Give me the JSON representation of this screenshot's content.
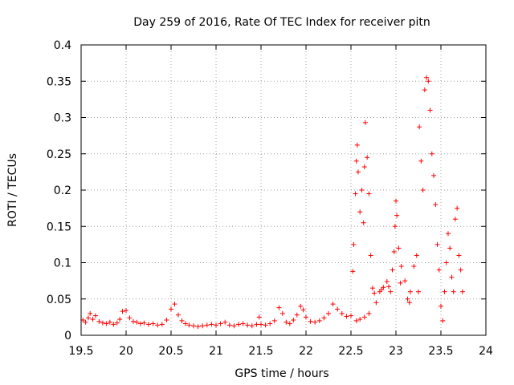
{
  "chart_data": {
    "type": "scatter",
    "title": "Day 259 of 2016, Rate Of TEC Index for receiver pitn",
    "xlabel": "GPS time / hours",
    "ylabel": "ROTI / TECUs",
    "xlim": [
      19.5,
      24
    ],
    "ylim": [
      0,
      0.4
    ],
    "xticks": [
      "19.5",
      "20",
      "20.5",
      "21",
      "21.5",
      "22",
      "22.5",
      "23",
      "23.5",
      "24"
    ],
    "yticks": [
      "0",
      "0.05",
      "0.1",
      "0.15",
      "0.2",
      "0.25",
      "0.3",
      "0.35",
      "0.4"
    ],
    "xtick_values": [
      19.5,
      20,
      20.5,
      21,
      21.5,
      22,
      22.5,
      23,
      23.5,
      24
    ],
    "ytick_values": [
      0,
      0.05,
      0.1,
      0.15,
      0.2,
      0.25,
      0.3,
      0.35,
      0.4
    ],
    "grid": true,
    "marker": "+",
    "color": "#ff0000",
    "series": [
      {
        "name": "ROTI",
        "points": [
          [
            19.52,
            0.021
          ],
          [
            19.55,
            0.018
          ],
          [
            19.58,
            0.024
          ],
          [
            19.6,
            0.03
          ],
          [
            19.63,
            0.022
          ],
          [
            19.66,
            0.027
          ],
          [
            19.7,
            0.019
          ],
          [
            19.74,
            0.017
          ],
          [
            19.78,
            0.016
          ],
          [
            19.82,
            0.018
          ],
          [
            19.86,
            0.015
          ],
          [
            19.9,
            0.017
          ],
          [
            19.93,
            0.022
          ],
          [
            19.96,
            0.033
          ],
          [
            20.0,
            0.034
          ],
          [
            20.04,
            0.024
          ],
          [
            20.08,
            0.019
          ],
          [
            20.12,
            0.018
          ],
          [
            20.16,
            0.016
          ],
          [
            20.2,
            0.017
          ],
          [
            20.25,
            0.015
          ],
          [
            20.3,
            0.016
          ],
          [
            20.35,
            0.014
          ],
          [
            20.4,
            0.015
          ],
          [
            20.45,
            0.021
          ],
          [
            20.5,
            0.036
          ],
          [
            20.54,
            0.043
          ],
          [
            20.58,
            0.028
          ],
          [
            20.62,
            0.02
          ],
          [
            20.66,
            0.016
          ],
          [
            20.7,
            0.014
          ],
          [
            20.75,
            0.013
          ],
          [
            20.8,
            0.012
          ],
          [
            20.85,
            0.013
          ],
          [
            20.9,
            0.014
          ],
          [
            20.95,
            0.015
          ],
          [
            21.0,
            0.014
          ],
          [
            21.05,
            0.016
          ],
          [
            21.1,
            0.018
          ],
          [
            21.15,
            0.014
          ],
          [
            21.2,
            0.013
          ],
          [
            21.25,
            0.015
          ],
          [
            21.3,
            0.016
          ],
          [
            21.35,
            0.014
          ],
          [
            21.4,
            0.013
          ],
          [
            21.45,
            0.015
          ],
          [
            21.48,
            0.025
          ],
          [
            21.5,
            0.015
          ],
          [
            21.55,
            0.014
          ],
          [
            21.6,
            0.016
          ],
          [
            21.65,
            0.02
          ],
          [
            21.7,
            0.038
          ],
          [
            21.74,
            0.03
          ],
          [
            21.78,
            0.018
          ],
          [
            21.82,
            0.016
          ],
          [
            21.86,
            0.021
          ],
          [
            21.9,
            0.028
          ],
          [
            21.94,
            0.04
          ],
          [
            21.97,
            0.035
          ],
          [
            22.0,
            0.025
          ],
          [
            22.05,
            0.019
          ],
          [
            22.1,
            0.018
          ],
          [
            22.15,
            0.02
          ],
          [
            22.2,
            0.024
          ],
          [
            22.25,
            0.03
          ],
          [
            22.3,
            0.043
          ],
          [
            22.35,
            0.036
          ],
          [
            22.4,
            0.03
          ],
          [
            22.45,
            0.026
          ],
          [
            22.5,
            0.027
          ],
          [
            22.52,
            0.088
          ],
          [
            22.53,
            0.125
          ],
          [
            22.55,
            0.195
          ],
          [
            22.56,
            0.24
          ],
          [
            22.57,
            0.262
          ],
          [
            22.58,
            0.225
          ],
          [
            22.6,
            0.17
          ],
          [
            22.62,
            0.2
          ],
          [
            22.64,
            0.155
          ],
          [
            22.65,
            0.232
          ],
          [
            22.66,
            0.293
          ],
          [
            22.68,
            0.245
          ],
          [
            22.7,
            0.195
          ],
          [
            22.72,
            0.11
          ],
          [
            22.74,
            0.065
          ],
          [
            22.78,
            0.045
          ],
          [
            22.82,
            0.06
          ],
          [
            22.86,
            0.066
          ],
          [
            22.9,
            0.074
          ],
          [
            22.94,
            0.06
          ],
          [
            22.96,
            0.09
          ],
          [
            22.98,
            0.115
          ],
          [
            22.99,
            0.15
          ],
          [
            23.0,
            0.185
          ],
          [
            23.01,
            0.165
          ],
          [
            23.03,
            0.12
          ],
          [
            23.06,
            0.095
          ],
          [
            23.1,
            0.075
          ],
          [
            23.13,
            0.05
          ],
          [
            23.16,
            0.06
          ],
          [
            23.2,
            0.095
          ],
          [
            23.23,
            0.11
          ],
          [
            23.26,
            0.287
          ],
          [
            23.28,
            0.24
          ],
          [
            23.3,
            0.2
          ],
          [
            23.32,
            0.338
          ],
          [
            23.34,
            0.355
          ],
          [
            23.36,
            0.35
          ],
          [
            23.38,
            0.31
          ],
          [
            23.4,
            0.25
          ],
          [
            23.42,
            0.22
          ],
          [
            23.44,
            0.18
          ],
          [
            23.46,
            0.125
          ],
          [
            23.48,
            0.09
          ],
          [
            23.5,
            0.04
          ],
          [
            23.52,
            0.02
          ],
          [
            23.54,
            0.06
          ],
          [
            23.56,
            0.1
          ],
          [
            23.58,
            0.14
          ],
          [
            23.6,
            0.12
          ],
          [
            23.62,
            0.08
          ],
          [
            23.64,
            0.06
          ],
          [
            23.66,
            0.16
          ],
          [
            23.68,
            0.175
          ],
          [
            23.7,
            0.11
          ],
          [
            23.72,
            0.09
          ],
          [
            23.74,
            0.06
          ],
          [
            22.56,
            0.02
          ],
          [
            22.6,
            0.022
          ],
          [
            22.65,
            0.025
          ],
          [
            22.7,
            0.03
          ],
          [
            22.76,
            0.058
          ],
          [
            22.84,
            0.063
          ],
          [
            22.92,
            0.067
          ],
          [
            23.05,
            0.072
          ],
          [
            23.15,
            0.045
          ],
          [
            23.25,
            0.06
          ]
        ]
      }
    ]
  }
}
